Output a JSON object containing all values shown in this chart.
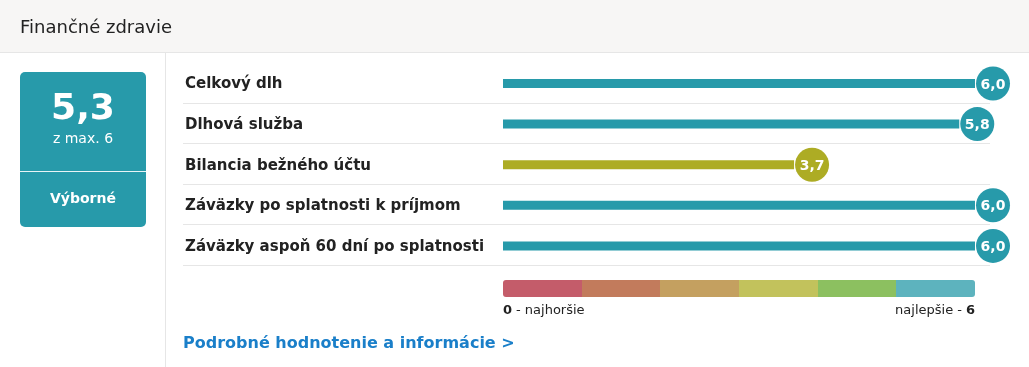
{
  "chart_data": {
    "type": "bar",
    "orientation": "horizontal",
    "title": "Finančné zdravie",
    "categories": [
      "Celkový dlh",
      "Dlhová služba",
      "Bilancia bežného účtu",
      "Záväzky po splatnosti k príjmom",
      "Záväzky aspoň 60 dní po splatnosti"
    ],
    "values": [
      6.0,
      5.8,
      3.7,
      6.0,
      6.0
    ],
    "value_labels": [
      "6,0",
      "5,8",
      "3,7",
      "6,0",
      "6,0"
    ],
    "colors": [
      "#279aaa",
      "#279aaa",
      "#adac24",
      "#279aaa",
      "#279aaa"
    ],
    "xlim": [
      0,
      6
    ],
    "xticks": [
      0,
      6
    ],
    "annotations": [
      "5,3",
      "z max. 6",
      "Výborné",
      "Podrobné hodnotenie a informácie >",
      "- najhoršie",
      "najlepšie -"
    ]
  }
}
